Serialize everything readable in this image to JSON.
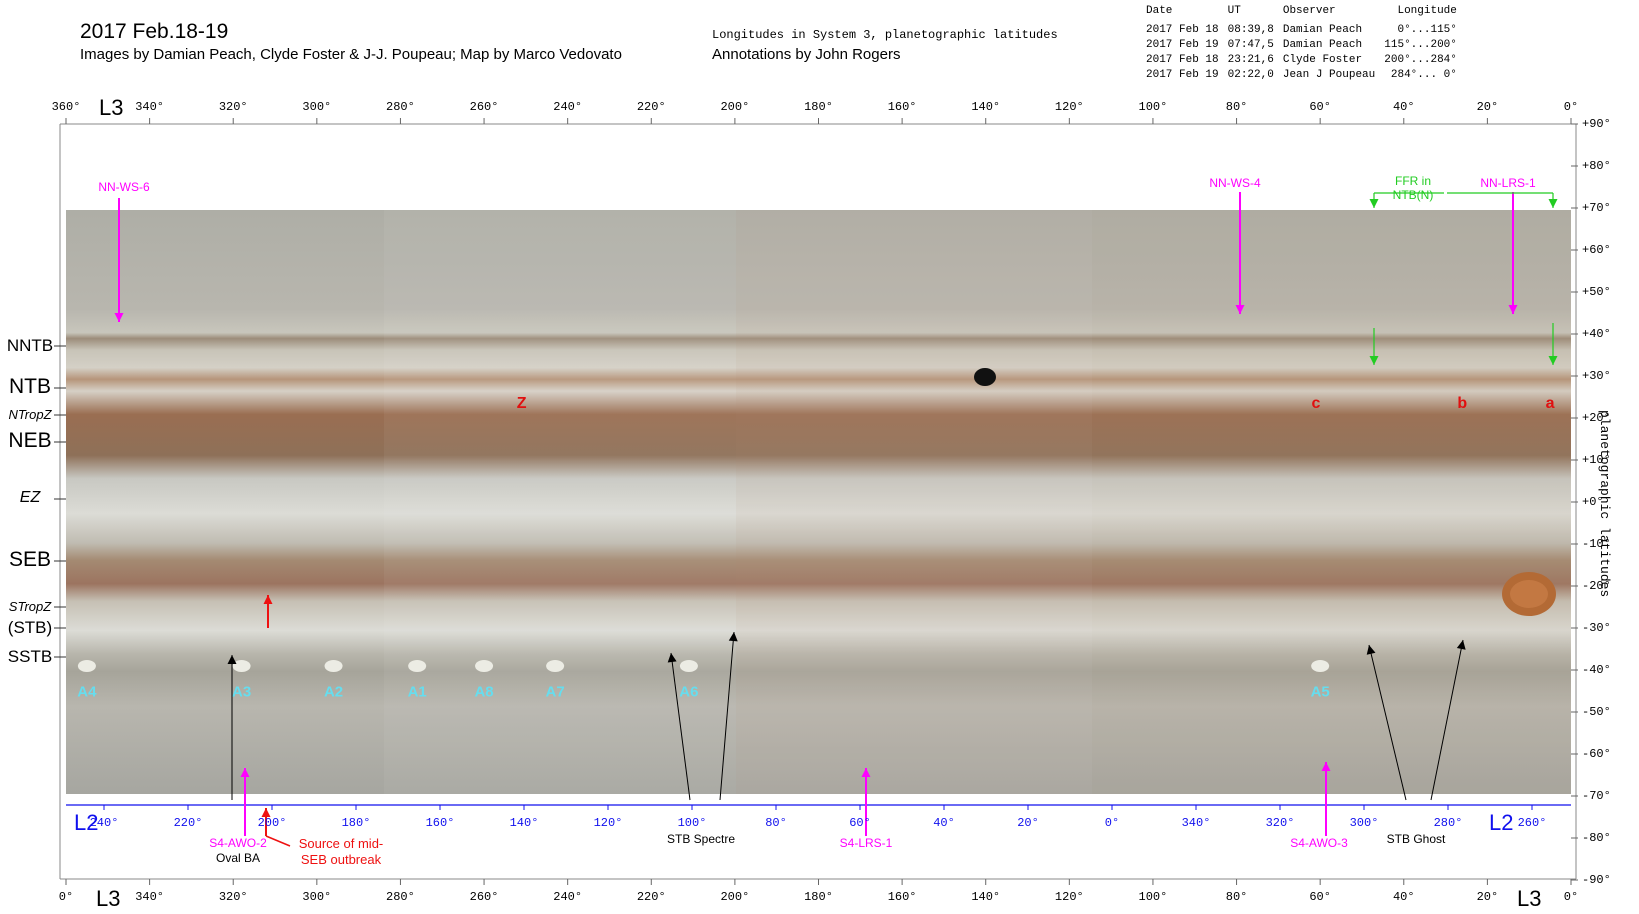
{
  "header": {
    "title": "2017 Feb.18-19",
    "credits": "Images by Damian Peach, Clyde Foster & J-J. Poupeau; Map by Marco Vedovato",
    "system_note": "Longitudes in System 3, planetographic latitudes",
    "annotations": "Annotations by John Rogers"
  },
  "observations": {
    "headers": [
      "Date",
      "UT",
      "Observer",
      "Longitude"
    ],
    "rows": [
      [
        "2017 Feb 18",
        "08:39,8",
        "Damian Peach",
        "0°...115°"
      ],
      [
        "2017 Feb 19",
        "07:47,5",
        "Damian Peach",
        "115°...200°"
      ],
      [
        "2017 Feb 18",
        "23:21,6",
        "Clyde Foster",
        "200°...284°"
      ],
      [
        "2017 Feb 19",
        "02:22,0",
        "Jean J Poupeau",
        "284°... 0°"
      ]
    ]
  },
  "axes": {
    "l3_label": "L3",
    "l2_label": "L2",
    "lat_axis_title": "planetographic latitudes",
    "l3_ticks": [
      "360°",
      "340°",
      "320°",
      "300°",
      "280°",
      "260°",
      "240°",
      "220°",
      "200°",
      "180°",
      "160°",
      "140°",
      "120°",
      "100°",
      "80°",
      "60°",
      "40°",
      "20°",
      "0°"
    ],
    "l3_bottom_ticks": [
      "0°",
      "340°",
      "320°",
      "300°",
      "280°",
      "260°",
      "240°",
      "220°",
      "200°",
      "180°",
      "160°",
      "140°",
      "120°",
      "100°",
      "80°",
      "60°",
      "40°",
      "20°",
      "0°"
    ],
    "l2_ticks": [
      "240°",
      "220°",
      "200°",
      "180°",
      "160°",
      "140°",
      "120°",
      "100°",
      "80°",
      "60°",
      "40°",
      "20°",
      "0°",
      "340°",
      "320°",
      "300°",
      "280°",
      "260°"
    ],
    "lat_ticks": [
      "+90°",
      "+80°",
      "+70°",
      "+60°",
      "+50°",
      "+40°",
      "+30°",
      "+20°",
      "+10°",
      "+0°",
      "-10°",
      "-20°",
      "-30°",
      "-40°",
      "-50°",
      "-60°",
      "-70°",
      "-80°",
      "-90°"
    ]
  },
  "belts": [
    {
      "label": "NNTB",
      "style": "normal"
    },
    {
      "label": "NTB",
      "style": "large"
    },
    {
      "label": "NTropZ",
      "style": "italic-small"
    },
    {
      "label": "NEB",
      "style": "large"
    },
    {
      "label": "EZ",
      "style": "italic"
    },
    {
      "label": "SEB",
      "style": "large"
    },
    {
      "label": "STropZ",
      "style": "italic-small"
    },
    {
      "label": "(STB)",
      "style": "normal"
    },
    {
      "label": "SSTB",
      "style": "normal"
    }
  ],
  "spots": [
    {
      "label": "A4",
      "lon": 355,
      "lat": -40
    },
    {
      "label": "A3",
      "lon": 318,
      "lat": -40
    },
    {
      "label": "A2",
      "lon": 296,
      "lat": -40
    },
    {
      "label": "A1",
      "lon": 276,
      "lat": -40
    },
    {
      "label": "A8",
      "lon": 260,
      "lat": -40
    },
    {
      "label": "A7",
      "lon": 243,
      "lat": -40
    },
    {
      "label": "A6",
      "lon": 211,
      "lat": -40
    },
    {
      "label": "A5",
      "lon": 60,
      "lat": -40
    }
  ],
  "features": [
    {
      "label": "Z",
      "lon": 251
    },
    {
      "label": "c",
      "lon": 61
    },
    {
      "label": "b",
      "lon": 26
    },
    {
      "label": "a",
      "lon": 5
    }
  ],
  "annotations": {
    "nn_ws_6": "NN-WS-6",
    "nn_ws_4": "NN-WS-4",
    "nn_lrs_1": "NN-LRS-1",
    "ffr": "FFR in\nNTB(N)",
    "s4_awo_2": "S4-AWO-2",
    "oval_ba": "Oval BA",
    "source_outbreak": "Source of mid-\nSEB outbreak",
    "stb_spectre": "STB Spectre",
    "s4_lrs_1": "S4-LRS-1",
    "s4_awo_3": "S4-AWO-3",
    "stb_ghost": "STB Ghost"
  },
  "colors": {
    "magenta": "#ff00ff",
    "green": "#22cc22",
    "red": "#ee1111",
    "cyan": "#66ddee",
    "axis_blue": "#1010ee"
  }
}
